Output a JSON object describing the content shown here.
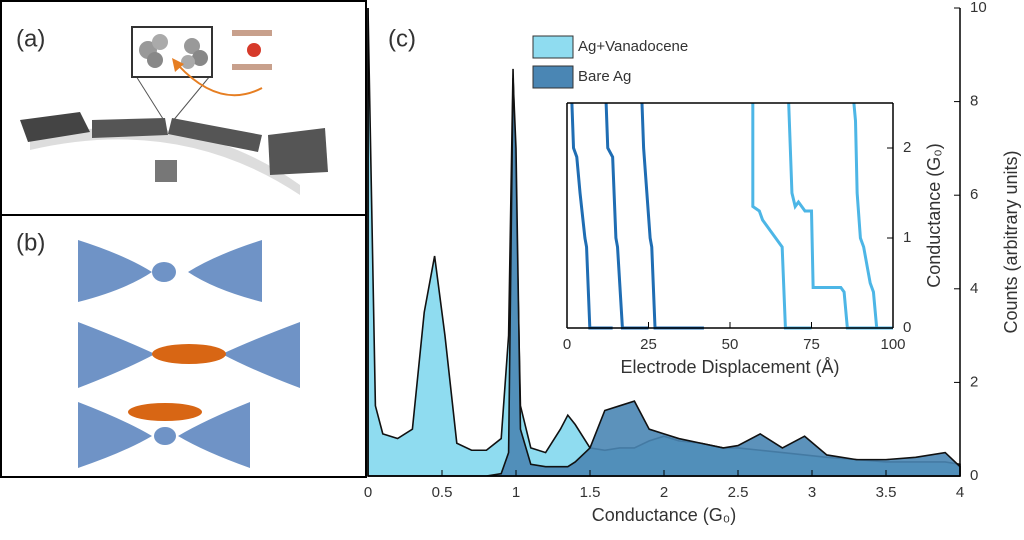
{
  "panels": {
    "a": "(a)",
    "b": "(b)",
    "c": "(c)"
  },
  "chart_data": [
    {
      "type": "area",
      "xlabel": "Conductance (G₀)",
      "ylabel": "Counts (arbitrary units)",
      "yaxis_side": "right",
      "xlim": [
        0,
        4
      ],
      "ylim": [
        0,
        10
      ],
      "xticks": [
        0,
        0.5,
        1,
        1.5,
        2,
        2.5,
        3,
        3.5,
        4
      ],
      "yticks": [
        0,
        2,
        4,
        6,
        8,
        10
      ],
      "legend": "top",
      "x": [
        0,
        0.05,
        0.1,
        0.2,
        0.3,
        0.38,
        0.45,
        0.52,
        0.6,
        0.7,
        0.8,
        0.9,
        0.95,
        0.98,
        1.0,
        1.03,
        1.1,
        1.2,
        1.3,
        1.35,
        1.4,
        1.5,
        1.6,
        1.7,
        1.8,
        1.9,
        2.0,
        2.1,
        2.25,
        2.4,
        2.5,
        2.65,
        2.8,
        2.95,
        3.1,
        3.3,
        3.5,
        3.7,
        3.9,
        4.0
      ],
      "series": [
        {
          "name": "Ag+Vanadocene",
          "color": "#8fdcf0",
          "values": [
            10,
            1.5,
            0.9,
            0.8,
            1.0,
            3.5,
            4.7,
            3.0,
            0.7,
            0.55,
            0.55,
            0.8,
            3.0,
            8.7,
            6.0,
            1.5,
            0.6,
            0.5,
            1.0,
            1.3,
            1.1,
            0.6,
            0.55,
            0.6,
            0.6,
            0.75,
            0.85,
            0.75,
            0.7,
            0.6,
            0.6,
            0.55,
            0.5,
            0.45,
            0.4,
            0.35,
            0.3,
            0.3,
            0.3,
            0.25
          ]
        },
        {
          "name": "Bare Ag",
          "color": "#4a86b4",
          "values": [
            0,
            0,
            0,
            0,
            0,
            0,
            0,
            0,
            0,
            0,
            0,
            0.05,
            0.5,
            8.5,
            7.0,
            1.0,
            0.25,
            0.2,
            0.2,
            0.2,
            0.3,
            0.6,
            1.4,
            1.5,
            1.6,
            1.0,
            0.9,
            0.8,
            0.7,
            0.6,
            0.65,
            0.9,
            0.6,
            0.85,
            0.45,
            0.35,
            0.35,
            0.4,
            0.5,
            0.2
          ]
        }
      ]
    },
    {
      "type": "line",
      "xlabel": "Electrode Displacement (Å)",
      "ylabel": "Conductance (G₀)",
      "yaxis_side": "right",
      "xlim": [
        0,
        100
      ],
      "ylim": [
        0,
        2.5
      ],
      "xticks": [
        0,
        25,
        50,
        75,
        100
      ],
      "yticks": [
        0,
        1,
        2
      ],
      "series": [
        {
          "color": "#1f6db3",
          "x": [
            1.5,
            2,
            3,
            4,
            5.5,
            6,
            7,
            14
          ],
          "values": [
            2.5,
            2,
            1.9,
            1.5,
            1,
            0.9,
            0,
            0
          ]
        },
        {
          "color": "#1f6db3",
          "x": [
            12,
            12.5,
            14,
            15,
            15.5,
            17,
            25
          ],
          "values": [
            2.5,
            2,
            1.9,
            1,
            0.9,
            0,
            0
          ]
        },
        {
          "color": "#1f6db3",
          "x": [
            23,
            23.5,
            24.5,
            25.5,
            26,
            27,
            42
          ],
          "values": [
            2.5,
            2,
            1.5,
            1,
            0.9,
            0,
            0
          ]
        },
        {
          "color": "#4db6e6",
          "x": [
            57,
            57,
            59,
            60,
            62,
            64,
            66,
            67,
            75
          ],
          "values": [
            2.5,
            1.35,
            1.3,
            1.2,
            1.1,
            1.0,
            0.9,
            0,
            0
          ]
        },
        {
          "color": "#4db6e6",
          "x": [
            68,
            69,
            70,
            71,
            73,
            75,
            75.5,
            84,
            85,
            86,
            95
          ],
          "values": [
            2.5,
            1.5,
            1.35,
            1.4,
            1.3,
            1.3,
            0.45,
            0.45,
            0.4,
            0,
            0
          ]
        },
        {
          "color": "#4db6e6",
          "x": [
            88,
            88.5,
            89,
            90,
            91,
            93,
            94,
            95,
            100
          ],
          "values": [
            2.5,
            2.3,
            1.5,
            1.0,
            0.9,
            0.5,
            0.4,
            0,
            0
          ]
        }
      ]
    }
  ]
}
